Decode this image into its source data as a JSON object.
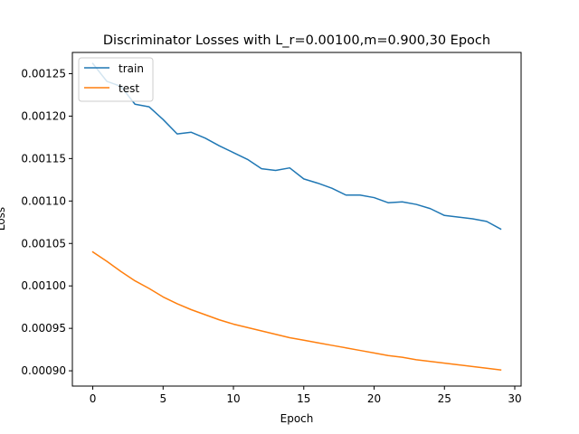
{
  "chart_data": {
    "type": "line",
    "title": "Discriminator Losses with L_r=0.00100,m=0.900,30 Epoch",
    "xlabel": "Epoch",
    "ylabel": "Loss",
    "xlim": [
      -1.45,
      30.45
    ],
    "ylim": [
      0.000882,
      0.001275
    ],
    "x_ticks": [
      0,
      5,
      10,
      15,
      20,
      25,
      30
    ],
    "x_tick_labels": [
      "0",
      "5",
      "10",
      "15",
      "20",
      "25",
      "30"
    ],
    "y_ticks": [
      0.0009,
      0.00095,
      0.001,
      0.00105,
      0.0011,
      0.00115,
      0.0012,
      0.00125
    ],
    "y_tick_labels": [
      "0.00090",
      "0.00095",
      "0.00100",
      "0.00105",
      "0.00110",
      "0.00115",
      "0.00120",
      "0.00125"
    ],
    "grid": false,
    "legend": {
      "position": "top-left"
    },
    "x": [
      0,
      1,
      2,
      3,
      4,
      5,
      6,
      7,
      8,
      9,
      10,
      11,
      12,
      13,
      14,
      15,
      16,
      17,
      18,
      19,
      20,
      21,
      22,
      23,
      24,
      25,
      26,
      27,
      28,
      29
    ],
    "series": [
      {
        "name": "train",
        "color": "#1f77b4",
        "values": [
          0.001262,
          0.001241,
          0.001235,
          0.001214,
          0.001211,
          0.001196,
          0.001179,
          0.001181,
          0.001174,
          0.001165,
          0.001157,
          0.001149,
          0.001138,
          0.001136,
          0.001139,
          0.001126,
          0.001121,
          0.001115,
          0.001107,
          0.001107,
          0.001104,
          0.001098,
          0.001099,
          0.001096,
          0.001091,
          0.001083,
          0.001081,
          0.001079,
          0.001076,
          0.001067
        ]
      },
      {
        "name": "test",
        "color": "#ff7f0e",
        "values": [
          0.00104,
          0.001029,
          0.001017,
          0.001006,
          0.000997,
          0.000987,
          0.000979,
          0.000972,
          0.000966,
          0.00096,
          0.000955,
          0.000951,
          0.000947,
          0.000943,
          0.000939,
          0.000936,
          0.000933,
          0.00093,
          0.000927,
          0.000924,
          0.000921,
          0.000918,
          0.000916,
          0.000913,
          0.000911,
          0.000909,
          0.000907,
          0.000905,
          0.000903,
          0.000901
        ]
      }
    ]
  }
}
